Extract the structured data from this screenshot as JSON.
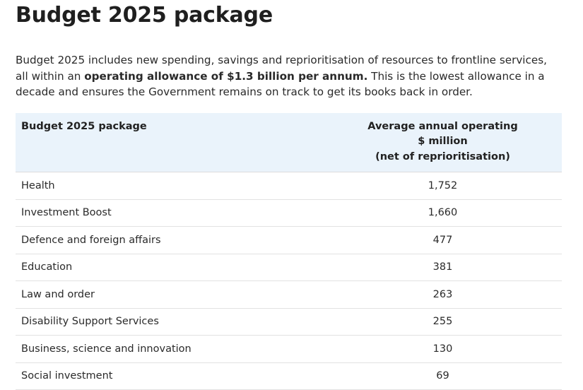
{
  "page": {
    "title": "Budget 2025 package",
    "intro": {
      "part1": "Budget 2025 includes new spending, savings and reprioritisation of resources to frontline services, all within an ",
      "bold": "operating allowance of $1.3 billion per annum.",
      "part2": " This is the lowest allowance in a decade and ensures the Government remains on track to get its books back in order."
    }
  },
  "table": {
    "headers": {
      "name": "Budget 2025 package",
      "value_lines": [
        "Average annual operating",
        "$ million",
        "(net of reprioritisation)"
      ]
    },
    "rows": [
      {
        "name": "Health",
        "value": "1,752"
      },
      {
        "name": "Investment Boost",
        "value": "1,660"
      },
      {
        "name": "Defence and foreign affairs",
        "value": "477"
      },
      {
        "name": "Education",
        "value": "381"
      },
      {
        "name": "Law and order",
        "value": "263"
      },
      {
        "name": "Disability Support Services",
        "value": "255"
      },
      {
        "name": "Business, science and innovation",
        "value": "130"
      },
      {
        "name": "Social investment",
        "value": "69"
      }
    ]
  }
}
